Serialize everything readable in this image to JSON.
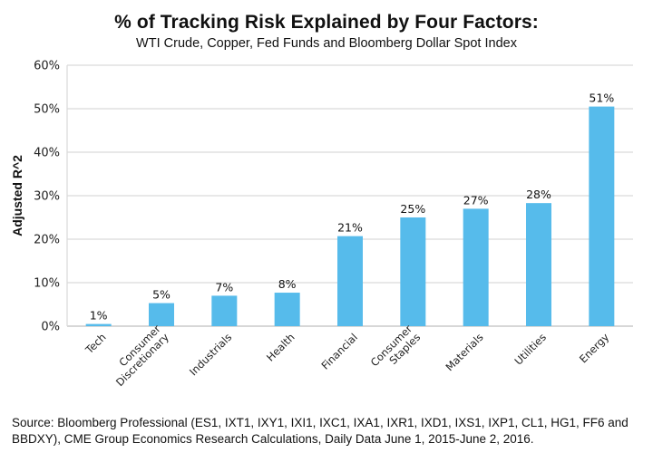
{
  "chart_data": {
    "type": "bar",
    "title": "% of Tracking Risk Explained by Four Factors:",
    "subtitle": "WTI Crude, Copper, Fed Funds and Bloomberg Dollar Spot Index",
    "xlabel": "",
    "ylabel": "Adjusted R^2",
    "ylim": [
      0,
      60
    ],
    "yticks": [
      0,
      10,
      20,
      30,
      40,
      50,
      60
    ],
    "ytick_labels": [
      "0%",
      "10%",
      "20%",
      "30%",
      "40%",
      "50%",
      "60%"
    ],
    "grid": true,
    "legend": "none",
    "bar_color": "#56bbeb",
    "categories": [
      [
        "Tech"
      ],
      [
        "Consumer",
        "Discretionary"
      ],
      [
        "Industrials"
      ],
      [
        "Health"
      ],
      [
        "Financial"
      ],
      [
        "Consumer",
        "Staples"
      ],
      [
        "Materials"
      ],
      [
        "Utilities"
      ],
      [
        "Energy"
      ]
    ],
    "values": [
      0.5,
      5.3,
      7.0,
      7.7,
      20.7,
      25.0,
      27.0,
      28.3,
      50.5
    ],
    "data_labels": [
      "1%",
      "5%",
      "7%",
      "8%",
      "21%",
      "25%",
      "27%",
      "28%",
      "51%"
    ]
  },
  "source": {
    "line1": "Source: Bloomberg Professional (ES1, IXT1, IXY1, IXI1, IXC1, IXA1, IXR1, IXD1, IXS1, IXP1, CL1, HG1, FF6 and",
    "line2": "BBDXY), CME Group Economics Research Calculations, Daily Data June 1, 2015-June 2, 2016."
  }
}
